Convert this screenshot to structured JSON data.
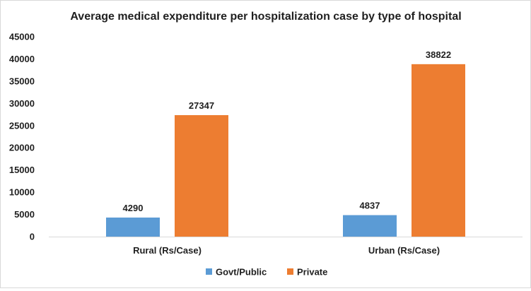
{
  "chart_data": {
    "type": "bar",
    "title": "Average medical expenditure per hospitalization case by type of hospital",
    "categories": [
      "Rural (Rs/Case)",
      "Urban (Rs/Case)"
    ],
    "series": [
      {
        "name": "Govt/Public",
        "values": [
          4290,
          4837
        ],
        "color": "#5b9bd5"
      },
      {
        "name": "Private",
        "values": [
          27347,
          38822
        ],
        "color": "#ed7d31"
      }
    ],
    "xlabel": "",
    "ylabel": "",
    "ylim": [
      0,
      45000
    ],
    "yticks": [
      0,
      5000,
      10000,
      15000,
      20000,
      25000,
      30000,
      35000,
      40000,
      45000
    ],
    "grid": false,
    "legend_position": "bottom",
    "data_labels": true
  }
}
